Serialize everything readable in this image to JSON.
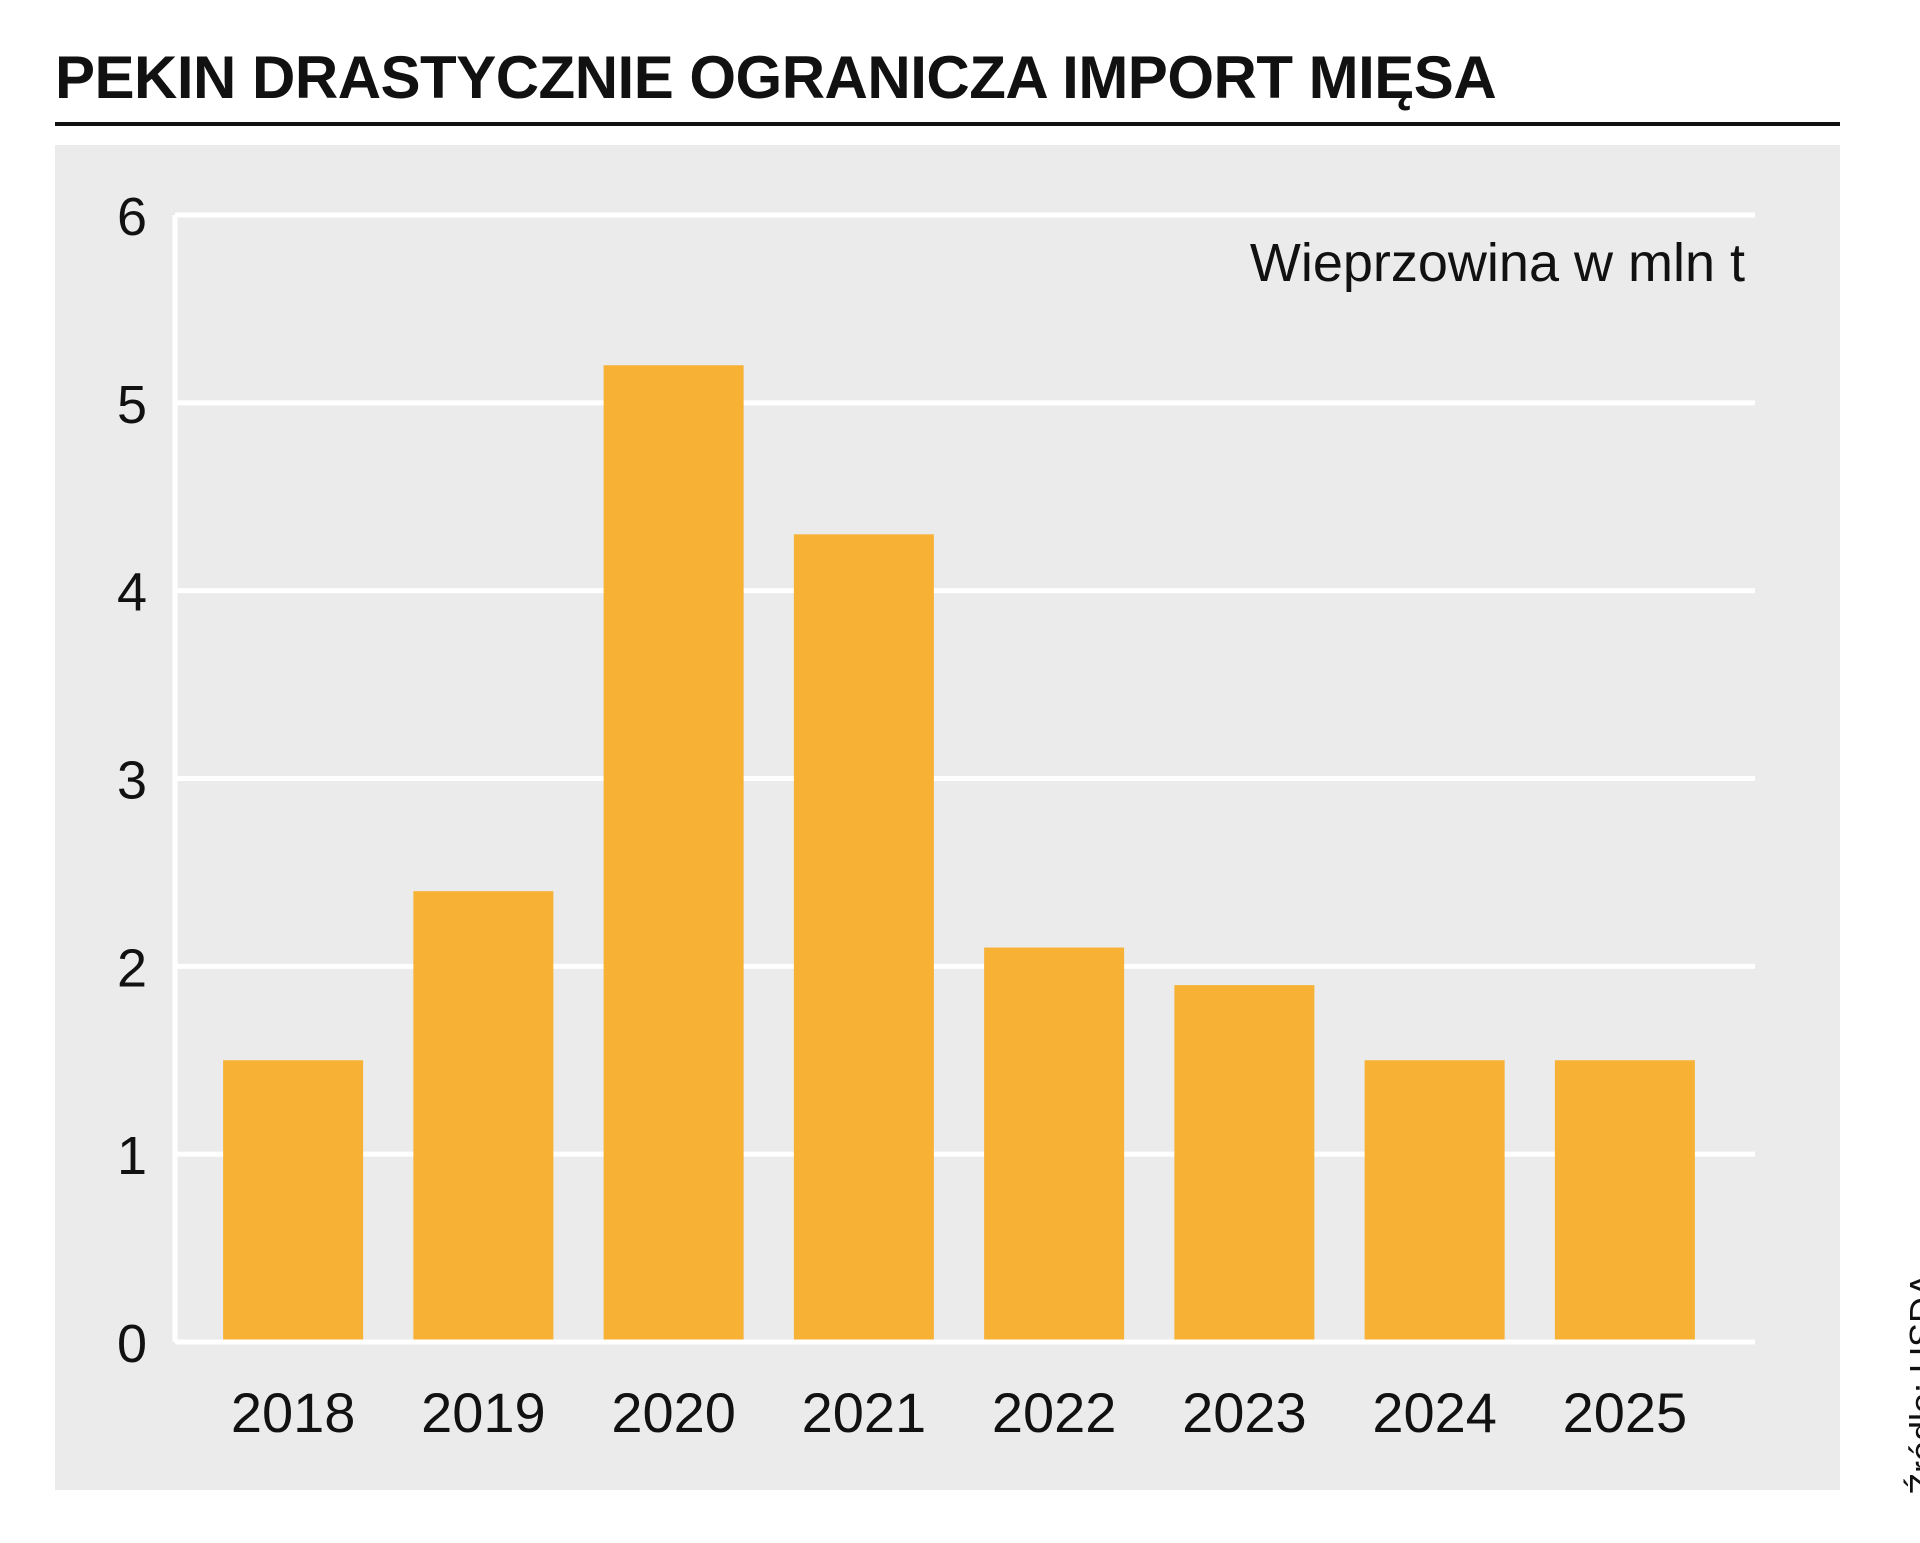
{
  "chart_data": {
    "type": "bar",
    "title": "PEKIN DRASTYCZNIE OGRANICZA IMPORT MIĘSA",
    "subtitle": "Wieprzowina w mln t",
    "xlabel": "",
    "ylabel": "",
    "source": "Źródło: USDA",
    "categories": [
      "2018",
      "2019",
      "2020",
      "2021",
      "2022",
      "2023",
      "2024",
      "2025"
    ],
    "values": [
      1.5,
      2.4,
      5.2,
      4.3,
      2.1,
      1.9,
      1.5,
      1.5
    ],
    "ylim": [
      0,
      6
    ],
    "yticks": [
      0,
      1,
      2,
      3,
      4,
      5,
      6
    ],
    "grid": true,
    "legend": "none",
    "colors": {
      "bar": "#f7b135",
      "panel": "#ebebeb",
      "grid": "#ffffff",
      "text": "#111111"
    }
  }
}
